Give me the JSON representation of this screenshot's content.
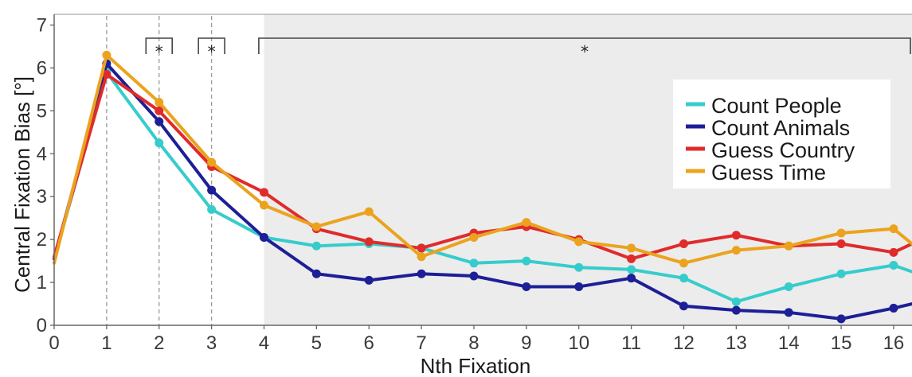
{
  "chart_data": {
    "type": "line",
    "xlabel": "Nth Fixation",
    "ylabel": "Central Fixation Bias [°]",
    "xlim": [
      0,
      16.35
    ],
    "ylim": [
      0,
      7.25
    ],
    "x_ticks": [
      0,
      1,
      2,
      3,
      4,
      5,
      6,
      7,
      8,
      9,
      10,
      11,
      12,
      13,
      14,
      15,
      16
    ],
    "y_ticks": [
      0,
      1,
      2,
      3,
      4,
      5,
      6,
      7
    ],
    "shaded_region": [
      4,
      16.35
    ],
    "dashed_vlines": [
      1,
      2,
      3
    ],
    "significance": [
      {
        "from": 1.75,
        "to": 2.25,
        "label": "*"
      },
      {
        "from": 2.75,
        "to": 3.25,
        "label": "*"
      },
      {
        "from": 3.9,
        "to": 16.35,
        "label": "*"
      }
    ],
    "legend_position": "top-right",
    "x": [
      0,
      1,
      2,
      3,
      4,
      5,
      6,
      7,
      8,
      9,
      10,
      11,
      12,
      13,
      14,
      15,
      16,
      16.35
    ],
    "series": [
      {
        "name": "Count People",
        "color": "#37cccc",
        "values": [
          1.55,
          5.9,
          4.25,
          2.7,
          2.05,
          1.85,
          1.9,
          1.8,
          1.45,
          1.5,
          1.35,
          1.3,
          1.1,
          0.55,
          0.9,
          1.2,
          1.4,
          1.25
        ]
      },
      {
        "name": "Count Animals",
        "color": "#1d1f96",
        "values": [
          1.55,
          6.1,
          4.75,
          3.15,
          2.05,
          1.2,
          1.05,
          1.2,
          1.15,
          0.9,
          0.9,
          1.1,
          0.45,
          0.35,
          0.3,
          0.15,
          0.4,
          0.5
        ]
      },
      {
        "name": "Guess Country",
        "color": "#e02b2b",
        "values": [
          1.6,
          5.85,
          5.0,
          3.7,
          3.1,
          2.25,
          1.95,
          1.8,
          2.15,
          2.3,
          2.0,
          1.55,
          1.9,
          2.1,
          1.85,
          1.9,
          1.7,
          1.9
        ]
      },
      {
        "name": "Guess Time",
        "color": "#eba31f",
        "values": [
          1.45,
          6.3,
          5.2,
          3.8,
          2.8,
          2.3,
          2.65,
          1.6,
          2.05,
          2.4,
          1.95,
          1.8,
          1.45,
          1.75,
          1.85,
          2.15,
          2.25,
          1.9
        ]
      }
    ]
  }
}
